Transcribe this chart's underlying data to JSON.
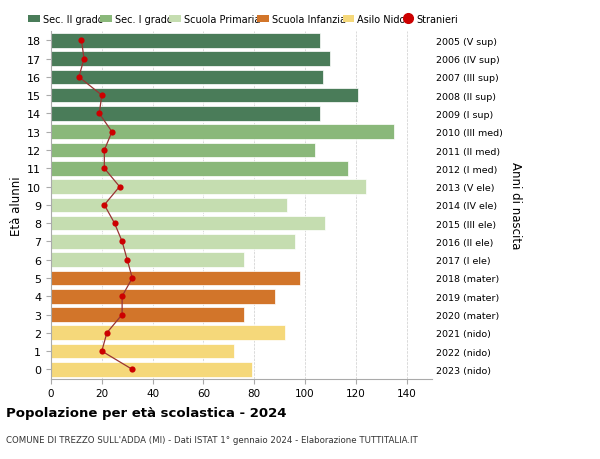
{
  "ages": [
    18,
    17,
    16,
    15,
    14,
    13,
    12,
    11,
    10,
    9,
    8,
    7,
    6,
    5,
    4,
    3,
    2,
    1,
    0
  ],
  "values": [
    106,
    110,
    107,
    121,
    106,
    135,
    104,
    117,
    124,
    93,
    108,
    96,
    76,
    98,
    88,
    76,
    92,
    72,
    79
  ],
  "stranieri": [
    12,
    13,
    11,
    20,
    19,
    24,
    21,
    21,
    27,
    21,
    25,
    28,
    30,
    32,
    28,
    28,
    22,
    20,
    32
  ],
  "right_labels": [
    "2005 (V sup)",
    "2006 (IV sup)",
    "2007 (III sup)",
    "2008 (II sup)",
    "2009 (I sup)",
    "2010 (III med)",
    "2011 (II med)",
    "2012 (I med)",
    "2013 (V ele)",
    "2014 (IV ele)",
    "2015 (III ele)",
    "2016 (II ele)",
    "2017 (I ele)",
    "2018 (mater)",
    "2019 (mater)",
    "2020 (mater)",
    "2021 (nido)",
    "2022 (nido)",
    "2023 (nido)"
  ],
  "bar_colors": [
    "#4a7c59",
    "#4a7c59",
    "#4a7c59",
    "#4a7c59",
    "#4a7c59",
    "#8ab87a",
    "#8ab87a",
    "#8ab87a",
    "#c5ddb0",
    "#c5ddb0",
    "#c5ddb0",
    "#c5ddb0",
    "#c5ddb0",
    "#d2752a",
    "#d2752a",
    "#d2752a",
    "#f5d87a",
    "#f5d87a",
    "#f5d87a"
  ],
  "legend_labels": [
    "Sec. II grado",
    "Sec. I grado",
    "Scuola Primaria",
    "Scuola Infanzia",
    "Asilo Nido",
    "Stranieri"
  ],
  "legend_colors": [
    "#4a7c59",
    "#8ab87a",
    "#c5ddb0",
    "#d2752a",
    "#f5d87a",
    "#cc0000"
  ],
  "ylabel_left": "Età alunni",
  "ylabel_right": "Anni di nascita",
  "title": "Popolazione per età scolastica - 2024",
  "subtitle": "COMUNE DI TREZZO SULL'ADDA (MI) - Dati ISTAT 1° gennaio 2024 - Elaborazione TUTTITALIA.IT",
  "xlim": [
    0,
    150
  ],
  "xticks": [
    0,
    20,
    40,
    60,
    80,
    100,
    120,
    140
  ],
  "bg_color": "#ffffff",
  "grid_color": "#cccccc",
  "stranieri_dot_color": "#cc0000",
  "stranieri_line_color": "#993333"
}
